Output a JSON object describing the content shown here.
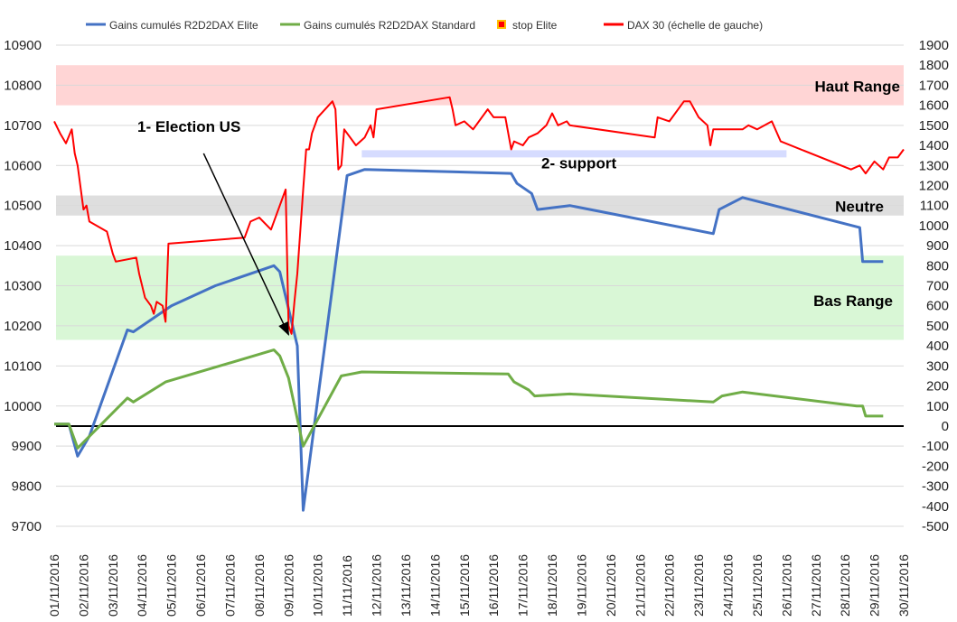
{
  "chart_data": {
    "type": "line",
    "title": "",
    "y_left": {
      "min": 9700,
      "max": 10900,
      "ticks": [
        9700,
        9800,
        9900,
        10000,
        10100,
        10200,
        10300,
        10400,
        10500,
        10600,
        10700,
        10800,
        10900
      ]
    },
    "y_right": {
      "min": -500,
      "max": 1900,
      "ticks": [
        -500,
        -400,
        -300,
        -200,
        -100,
        0,
        100,
        200,
        300,
        400,
        500,
        600,
        700,
        800,
        900,
        1000,
        1100,
        1200,
        1300,
        1400,
        1500,
        1600,
        1700,
        1800,
        1900
      ]
    },
    "x_range": [
      1,
      30
    ],
    "x_ticks": [
      "01/11/2016",
      "02/11/2016",
      "03/11/2016",
      "04/11/2016",
      "05/11/2016",
      "06/11/2016",
      "07/11/2016",
      "08/11/2016",
      "09/11/2016",
      "10/11/2016",
      "11/11/2016",
      "12/11/2016",
      "13/11/2016",
      "14/11/2016",
      "15/11/2016",
      "16/11/2016",
      "17/11/2016",
      "18/11/2016",
      "19/11/2016",
      "20/11/2016",
      "21/11/2016",
      "22/11/2016",
      "23/11/2016",
      "24/11/2016",
      "25/11/2016",
      "26/11/2016",
      "27/11/2016",
      "28/11/2016",
      "29/11/2016",
      "30/11/2016"
    ],
    "legend_position": "top",
    "bands": [
      {
        "label": "Haut Range",
        "ymin": 10750,
        "ymax": 10850,
        "color": "#ffd5d5"
      },
      {
        "label": "Neutre",
        "ymin": 10475,
        "ymax": 10525,
        "color": "#dedede"
      },
      {
        "label": "Bas Range",
        "ymin": 10165,
        "ymax": 10375,
        "color": "#d9f7d6"
      }
    ],
    "support_band": {
      "label": "2- support",
      "x": [
        11.5,
        26
      ],
      "ymin": 10620,
      "ymax": 10638,
      "color": "#d6dcff"
    },
    "annotation": {
      "label": "1- Election US",
      "arrow_from": [
        6.1,
        10630
      ],
      "arrow_to": [
        9.0,
        10178
      ]
    },
    "series": [
      {
        "name": "Gains cumulés R2D2DAX Elite",
        "axis": "right",
        "color": "#4472c4",
        "points": [
          [
            1,
            10
          ],
          [
            1.5,
            10
          ],
          [
            1.8,
            -150
          ],
          [
            2.2,
            -50
          ],
          [
            3.5,
            480
          ],
          [
            3.7,
            470
          ],
          [
            5.0,
            600
          ],
          [
            6.5,
            700
          ],
          [
            8.5,
            800
          ],
          [
            8.7,
            770
          ],
          [
            9.3,
            400
          ],
          [
            9.5,
            -420
          ],
          [
            11.0,
            1250
          ],
          [
            11.6,
            1280
          ],
          [
            16.6,
            1260
          ],
          [
            16.8,
            1210
          ],
          [
            17.3,
            1160
          ],
          [
            17.5,
            1080
          ],
          [
            18.6,
            1100
          ],
          [
            23.5,
            960
          ],
          [
            23.7,
            1080
          ],
          [
            24.5,
            1140
          ],
          [
            28.5,
            990
          ],
          [
            28.6,
            820
          ],
          [
            29.3,
            820
          ]
        ]
      },
      {
        "name": "Gains cumulés R2D2DAX Standard",
        "axis": "right",
        "color": "#70ad47",
        "points": [
          [
            1,
            10
          ],
          [
            1.5,
            10
          ],
          [
            1.8,
            -110
          ],
          [
            3.5,
            140
          ],
          [
            3.7,
            120
          ],
          [
            4.8,
            220
          ],
          [
            8.5,
            380
          ],
          [
            8.7,
            350
          ],
          [
            9.0,
            240
          ],
          [
            9.5,
            -100
          ],
          [
            10.8,
            250
          ],
          [
            11.5,
            270
          ],
          [
            16.5,
            260
          ],
          [
            16.7,
            220
          ],
          [
            17.2,
            180
          ],
          [
            17.4,
            150
          ],
          [
            18.6,
            160
          ],
          [
            23.5,
            120
          ],
          [
            23.8,
            150
          ],
          [
            24.5,
            170
          ],
          [
            28.4,
            100
          ],
          [
            28.6,
            100
          ],
          [
            28.7,
            50
          ],
          [
            29.3,
            50
          ]
        ]
      },
      {
        "name": "stop Elite",
        "axis": "right",
        "color": "#ff0000",
        "marker": "square",
        "points": []
      },
      {
        "name": "DAX 30 (échelle de gauche)",
        "axis": "left",
        "color": "#ff0000",
        "points": [
          [
            1,
            10710
          ],
          [
            1.2,
            10680
          ],
          [
            1.4,
            10655
          ],
          [
            1.6,
            10690
          ],
          [
            1.7,
            10630
          ],
          [
            1.8,
            10600
          ],
          [
            2.0,
            10490
          ],
          [
            2.1,
            10500
          ],
          [
            2.2,
            10460
          ],
          [
            2.8,
            10435
          ],
          [
            3.0,
            10380
          ],
          [
            3.1,
            10360
          ],
          [
            3.8,
            10370
          ],
          [
            3.9,
            10330
          ],
          [
            4.1,
            10270
          ],
          [
            4.3,
            10250
          ],
          [
            4.4,
            10230
          ],
          [
            4.5,
            10260
          ],
          [
            4.7,
            10250
          ],
          [
            4.8,
            10210
          ],
          [
            4.9,
            10405
          ],
          [
            7.5,
            10420
          ],
          [
            7.7,
            10460
          ],
          [
            8.0,
            10470
          ],
          [
            8.4,
            10440
          ],
          [
            8.9,
            10540
          ],
          [
            9.0,
            10200
          ],
          [
            9.1,
            10180
          ],
          [
            9.2,
            10260
          ],
          [
            9.3,
            10330
          ],
          [
            9.5,
            10540
          ],
          [
            9.6,
            10640
          ],
          [
            9.7,
            10640
          ],
          [
            9.8,
            10680
          ],
          [
            10.0,
            10720
          ],
          [
            10.5,
            10760
          ],
          [
            10.6,
            10740
          ],
          [
            10.7,
            10590
          ],
          [
            10.8,
            10600
          ],
          [
            10.9,
            10690
          ],
          [
            11.3,
            10650
          ],
          [
            11.6,
            10670
          ],
          [
            11.8,
            10700
          ],
          [
            11.9,
            10670
          ],
          [
            12.0,
            10740
          ],
          [
            14.5,
            10770
          ],
          [
            14.6,
            10740
          ],
          [
            14.7,
            10700
          ],
          [
            15.0,
            10710
          ],
          [
            15.3,
            10690
          ],
          [
            15.5,
            10710
          ],
          [
            15.8,
            10740
          ],
          [
            16.0,
            10720
          ],
          [
            16.4,
            10720
          ],
          [
            16.6,
            10640
          ],
          [
            16.7,
            10660
          ],
          [
            17.0,
            10650
          ],
          [
            17.2,
            10670
          ],
          [
            17.5,
            10680
          ],
          [
            17.8,
            10700
          ],
          [
            18.0,
            10730
          ],
          [
            18.2,
            10700
          ],
          [
            18.5,
            10710
          ],
          [
            18.6,
            10700
          ],
          [
            21.5,
            10670
          ],
          [
            21.6,
            10720
          ],
          [
            22.0,
            10710
          ],
          [
            22.5,
            10760
          ],
          [
            22.7,
            10760
          ],
          [
            23.0,
            10720
          ],
          [
            23.3,
            10700
          ],
          [
            23.4,
            10650
          ],
          [
            23.5,
            10690
          ],
          [
            24.5,
            10690
          ],
          [
            24.7,
            10700
          ],
          [
            25.0,
            10690
          ],
          [
            25.5,
            10710
          ],
          [
            25.8,
            10660
          ],
          [
            28.2,
            10590
          ],
          [
            28.5,
            10600
          ],
          [
            28.7,
            10580
          ],
          [
            29.0,
            10610
          ],
          [
            29.3,
            10590
          ],
          [
            29.5,
            10620
          ],
          [
            29.8,
            10620
          ],
          [
            30,
            10640
          ]
        ]
      }
    ]
  }
}
